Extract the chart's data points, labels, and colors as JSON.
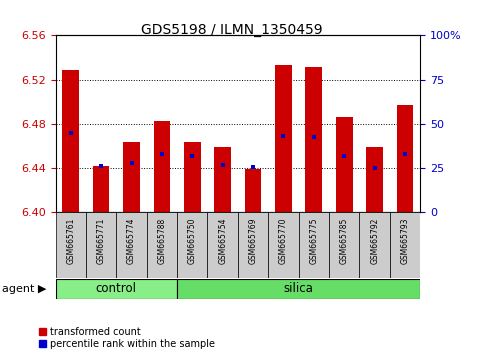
{
  "title": "GDS5198 / ILMN_1350459",
  "samples": [
    "GSM665761",
    "GSM665771",
    "GSM665774",
    "GSM665788",
    "GSM665750",
    "GSM665754",
    "GSM665769",
    "GSM665770",
    "GSM665775",
    "GSM665785",
    "GSM665792",
    "GSM665793"
  ],
  "groups": [
    "control",
    "control",
    "control",
    "control",
    "silica",
    "silica",
    "silica",
    "silica",
    "silica",
    "silica",
    "silica",
    "silica"
  ],
  "red_values": [
    6.529,
    6.442,
    6.464,
    6.483,
    6.464,
    6.459,
    6.439,
    6.533,
    6.531,
    6.486,
    6.459,
    6.497
  ],
  "blue_values": [
    6.472,
    6.442,
    6.445,
    6.453,
    6.451,
    6.443,
    6.441,
    6.469,
    6.468,
    6.451,
    6.44,
    6.453
  ],
  "ymin": 6.4,
  "ymax": 6.56,
  "yticks": [
    6.4,
    6.44,
    6.48,
    6.52,
    6.56
  ],
  "y2ticks": [
    0,
    25,
    50,
    75,
    100
  ],
  "y2labels": [
    "0",
    "25",
    "50",
    "75",
    "100%"
  ],
  "bar_color": "#cc0000",
  "dot_color": "#0000cc",
  "control_color": "#88ee88",
  "silica_color": "#66dd66",
  "bg_color": "#cccccc",
  "plot_bg": "#ffffff",
  "bar_width": 0.55,
  "dot_size": 3.0,
  "title_fontsize": 10,
  "tick_fontsize": 8,
  "label_fontsize": 8,
  "sample_fontsize": 5.5,
  "group_fontsize": 8.5,
  "legend_fontsize": 7.0,
  "control_count": 4,
  "silica_count": 8
}
